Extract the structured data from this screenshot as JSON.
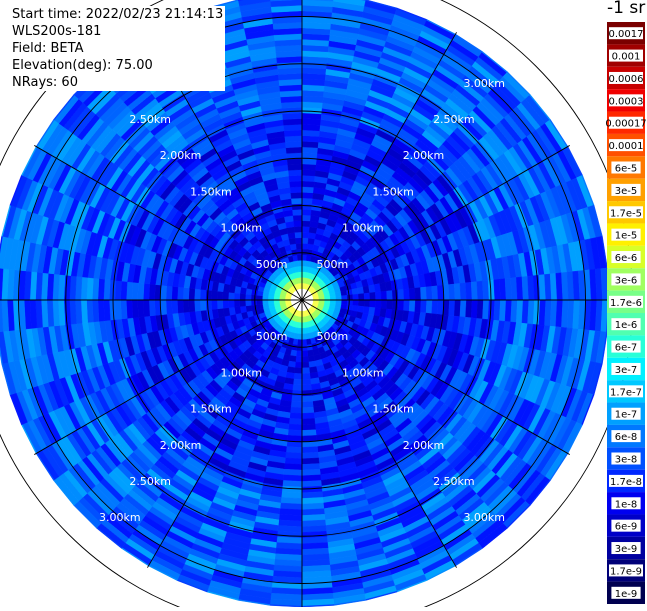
{
  "header": {
    "start_time": "Start time: 2022/02/23 21:14:13",
    "instrument": "WLS200s-181",
    "field": "Field: BETA",
    "elevation": "Elevation(deg): 75.00",
    "nrays": "NRays: 60"
  },
  "units_label": "-1 sr",
  "range_rings": {
    "ring_km": [
      0.5,
      1.0,
      1.5,
      2.0,
      2.5,
      3.0,
      3.5
    ],
    "labels": [
      "500m",
      "1.00km",
      "1.50km",
      "2.00km",
      "2.50km",
      "3.00km"
    ]
  },
  "spokes_count": 12,
  "colorscale": {
    "labels": [
      "0.0017",
      "0.001",
      "0.0006",
      "0.0003",
      "0.00017",
      "0.0001",
      "6e-5",
      "3e-5",
      "1.7e-5",
      "1e-5",
      "6e-6",
      "3e-6",
      "1.7e-6",
      "1e-6",
      "6e-7",
      "3e-7",
      "1.7e-7",
      "1e-7",
      "6e-8",
      "3e-8",
      "1.7e-8",
      "1e-8",
      "6e-9",
      "3e-9",
      "1.7e-9",
      "1e-9"
    ],
    "colors": [
      "#7a0000",
      "#a00000",
      "#c80000",
      "#f00000",
      "#ff2800",
      "#ff5000",
      "#ff7800",
      "#ffa000",
      "#ffc800",
      "#fff000",
      "#d8ff28",
      "#a0ff60",
      "#78ff88",
      "#50ffb0",
      "#28ffd8",
      "#00f0ff",
      "#00c8ff",
      "#00a0ff",
      "#0078ff",
      "#0050ff",
      "#0028ff",
      "#0000f0",
      "#0000c8",
      "#0000a0",
      "#000078",
      "#000050"
    ]
  }
}
